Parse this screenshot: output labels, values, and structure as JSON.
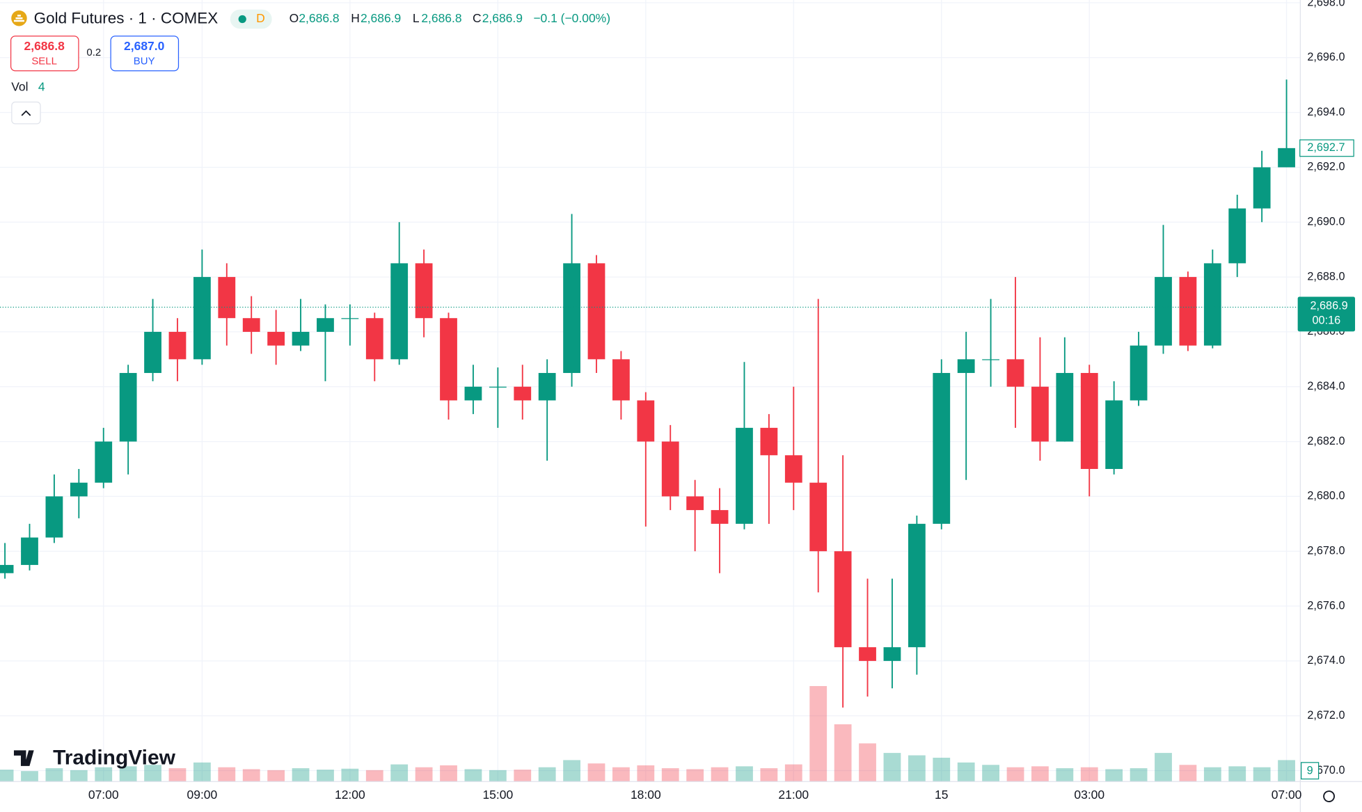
{
  "header": {
    "title": "Gold Futures · 1 · COMEX",
    "status": "D",
    "open_label": "O",
    "open": "2,686.8",
    "high_label": "H",
    "high": "2,686.9",
    "low_label": "L",
    "low": "2,686.8",
    "close_label": "C",
    "close": "2,686.9",
    "change": "−0.1 (−0.00%)",
    "sell_price": "2,686.8",
    "sell_label": "SELL",
    "spread": "0.2",
    "buy_price": "2,687.0",
    "buy_label": "BUY",
    "logo": "TradingView"
  },
  "chart_data": {
    "type": "candlestick",
    "x": [
      5.0,
      5.5,
      6.0,
      6.5,
      7.0,
      7.5,
      8.0,
      8.5,
      9.0,
      9.5,
      10.0,
      10.5,
      11.0,
      11.5,
      12.0,
      12.5,
      13.0,
      13.5,
      14.0,
      14.5,
      15.0,
      15.5,
      16.0,
      16.5,
      17.0,
      17.5,
      18.0,
      18.5,
      19.0,
      19.5,
      20.0,
      20.5,
      21.0,
      21.5,
      22.0,
      22.5,
      23.0,
      23.5,
      24.0,
      24.5,
      25.0,
      25.5,
      26.0,
      26.5,
      27.0,
      27.5,
      28.0,
      28.5,
      29.0,
      29.5,
      30.0,
      30.5,
      31.0
    ],
    "open": [
      2677.2,
      2677.5,
      2678.5,
      2680,
      2680.5,
      2682,
      2684.5,
      2686,
      2685,
      2688,
      2686.5,
      2686,
      2685.5,
      2686,
      2686.5,
      2686.5,
      2685,
      2688.5,
      2686.5,
      2683.5,
      2684,
      2684,
      2683.5,
      2684.5,
      2688.5,
      2685,
      2683.5,
      2682,
      2680,
      2679.5,
      2679,
      2682.5,
      2681.5,
      2680.5,
      2678,
      2674.5,
      2674,
      2674.5,
      2679,
      2684.5,
      2685,
      2685,
      2684,
      2682,
      2684.5,
      2681,
      2683.5,
      2685.5,
      2688,
      2685.5,
      2688.5,
      2690.5,
      2692
    ],
    "high": [
      2678.3,
      2679,
      2680.8,
      2681,
      2682.5,
      2684.8,
      2687.2,
      2686.5,
      2689,
      2688.5,
      2687.3,
      2686.8,
      2687.2,
      2687,
      2687,
      2686.7,
      2690,
      2689,
      2686.7,
      2684.8,
      2684.7,
      2684.8,
      2685,
      2690.3,
      2688.8,
      2685.3,
      2683.8,
      2682.6,
      2680.6,
      2680.3,
      2684.9,
      2683,
      2684,
      2687.2,
      2681.5,
      2677,
      2677,
      2679.3,
      2685,
      2686,
      2687.2,
      2688,
      2685.8,
      2685.8,
      2684.8,
      2684.2,
      2686,
      2689.9,
      2688.2,
      2689,
      2691,
      2692.6,
      2695.2
    ],
    "low": [
      2677,
      2677.3,
      2678.3,
      2679.2,
      2680.3,
      2680.8,
      2684.2,
      2684.2,
      2684.8,
      2685.5,
      2685.2,
      2684.8,
      2685.3,
      2684.2,
      2685.5,
      2684.2,
      2684.8,
      2685.8,
      2682.8,
      2683,
      2682.5,
      2682.8,
      2681.3,
      2684,
      2684.5,
      2682.8,
      2678.9,
      2679.5,
      2678,
      2677.2,
      2678.8,
      2679,
      2679.5,
      2676.5,
      2672.3,
      2672.7,
      2673,
      2673.5,
      2678.8,
      2680.6,
      2684,
      2682.5,
      2681.3,
      2682,
      2680,
      2680.8,
      2683.3,
      2685.2,
      2685.3,
      2685.4,
      2688,
      2690,
      2692
    ],
    "close": [
      2677.5,
      2678.5,
      2680,
      2680.5,
      2682,
      2684.5,
      2686,
      2685,
      2688,
      2686.5,
      2686,
      2685.5,
      2686,
      2686.5,
      2686.5,
      2685,
      2688.5,
      2686.5,
      2683.5,
      2684,
      2684,
      2683.5,
      2684.5,
      2688.5,
      2685,
      2683.5,
      2682,
      2680,
      2679.5,
      2679,
      2682.5,
      2681.5,
      2680.5,
      2678,
      2674.5,
      2674,
      2674.5,
      2679,
      2684.5,
      2685,
      2685,
      2684,
      2682,
      2684.5,
      2681,
      2683.5,
      2685.5,
      2688,
      2685.5,
      2688.5,
      2690.5,
      2692,
      2692.7
    ],
    "volume": [
      25,
      22,
      28,
      24,
      30,
      32,
      35,
      28,
      40,
      30,
      26,
      24,
      28,
      25,
      27,
      24,
      36,
      30,
      34,
      26,
      24,
      25,
      30,
      45,
      38,
      30,
      34,
      28,
      26,
      30,
      32,
      28,
      36,
      200,
      120,
      80,
      60,
      55,
      50,
      40,
      35,
      30,
      32,
      28,
      30,
      26,
      28,
      60,
      35,
      30,
      32,
      30,
      45
    ],
    "volume_ylim": [
      0,
      200
    ],
    "volume_label": "Vol",
    "volume_value": 4,
    "volume_axis_value": 9,
    "up_color": "#089981",
    "down_color": "#f23645",
    "xlim": [
      4.9,
      31.28
    ],
    "xticks": [
      {
        "value": 7,
        "label": "07:00"
      },
      {
        "value": 9,
        "label": "09:00"
      },
      {
        "value": 12,
        "label": "12:00"
      },
      {
        "value": 15,
        "label": "15:00"
      },
      {
        "value": 18,
        "label": "18:00"
      },
      {
        "value": 21,
        "label": "21:00"
      },
      {
        "value": 24,
        "label": "15"
      },
      {
        "value": 27,
        "label": "03:00"
      },
      {
        "value": 31,
        "label": "07:00"
      }
    ],
    "ylim": [
      2669.6,
      2698.1
    ],
    "yticks": [
      {
        "value": 2670,
        "label": "2,670.0"
      },
      {
        "value": 2672,
        "label": "2,672.0"
      },
      {
        "value": 2674,
        "label": "2,674.0"
      },
      {
        "value": 2676,
        "label": "2,676.0"
      },
      {
        "value": 2678,
        "label": "2,678.0"
      },
      {
        "value": 2680,
        "label": "2,680.0"
      },
      {
        "value": 2682,
        "label": "2,682.0"
      },
      {
        "value": 2684,
        "label": "2,684.0"
      },
      {
        "value": 2686,
        "label": "2,686.0"
      },
      {
        "value": 2688,
        "label": "2,688.0"
      },
      {
        "value": 2690,
        "label": "2,690.0"
      },
      {
        "value": 2692,
        "label": "2,692.0"
      },
      {
        "value": 2694,
        "label": "2,694.0"
      },
      {
        "value": 2696,
        "label": "2,696.0"
      },
      {
        "value": 2698,
        "label": "2,698.0"
      }
    ],
    "last_price": {
      "value": 2692.7,
      "label": "2,692.7"
    },
    "price_line": {
      "value": 2686.9,
      "label": "2,686.9",
      "countdown": "00:16"
    },
    "grid": true
  }
}
